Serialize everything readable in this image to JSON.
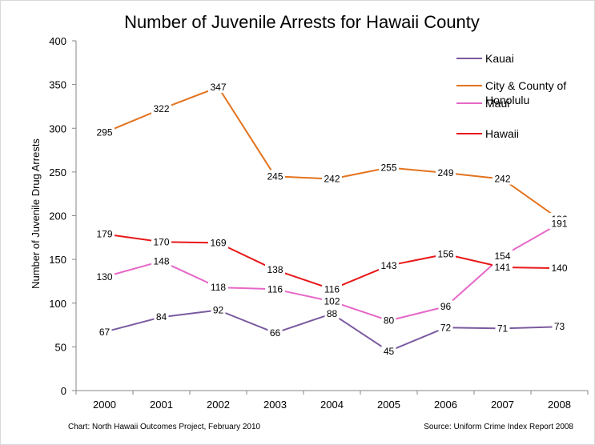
{
  "chart_data": {
    "type": "line",
    "title": "Number of Juvenile Arrests for Hawaii County",
    "xlabel": "",
    "ylabel": "Number of Juvenile Drug Arrests",
    "categories": [
      "2000",
      "2001",
      "2002",
      "2003",
      "2004",
      "2005",
      "2006",
      "2007",
      "2008"
    ],
    "ylim": [
      0,
      400
    ],
    "yticks": [
      0,
      50,
      100,
      150,
      200,
      250,
      300,
      350,
      400
    ],
    "grid": false,
    "legend_position": "top-right",
    "series": [
      {
        "name": "Kauai",
        "color": "#7a5aa0",
        "values": [
          67,
          84,
          92,
          66,
          88,
          45,
          72,
          71,
          73
        ]
      },
      {
        "name": "City & County of Honolulu",
        "color": "#e3731e",
        "values": [
          295,
          322,
          347,
          245,
          242,
          255,
          249,
          242,
          196
        ]
      },
      {
        "name": "Maui",
        "color": "#e667c8",
        "values": [
          130,
          148,
          118,
          116,
          102,
          80,
          96,
          154,
          191
        ]
      },
      {
        "name": "Hawaii",
        "color": "#e8181a",
        "values": [
          179,
          170,
          169,
          138,
          116,
          143,
          156,
          141,
          140
        ]
      }
    ],
    "footnote_left": "Chart: North Hawaii Outcomes Project,  February 2010",
    "footnote_right": "Source: Uniform Crime Index Report 2008"
  }
}
